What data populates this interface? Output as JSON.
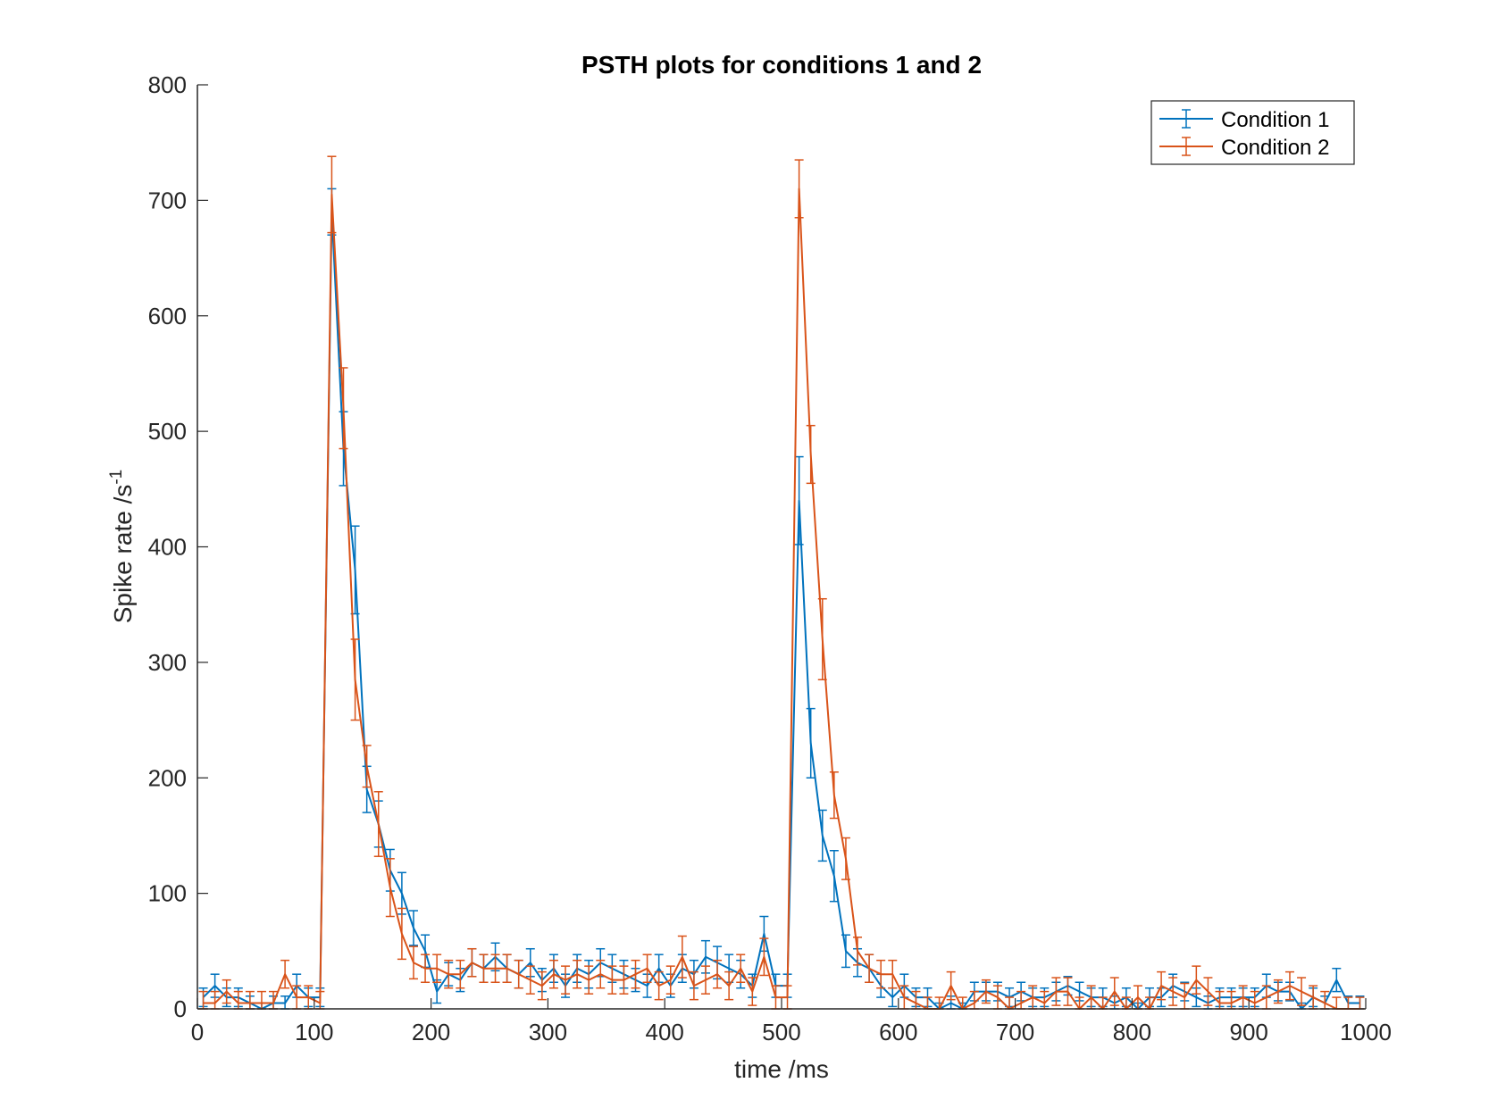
{
  "chart_data": {
    "type": "line",
    "title": "PSTH plots for conditions 1 and 2",
    "xlabel": "time /ms",
    "ylabel_base": "Spike rate /s",
    "ylabel_sup": "-1",
    "xlim": [
      0,
      1000
    ],
    "ylim": [
      0,
      800
    ],
    "xticks": [
      0,
      100,
      200,
      300,
      400,
      500,
      600,
      700,
      800,
      900,
      1000
    ],
    "yticks": [
      0,
      100,
      200,
      300,
      400,
      500,
      600,
      700,
      800
    ],
    "grid": false,
    "legend_position": "top-right",
    "error_bars": true,
    "x": [
      5,
      15,
      25,
      35,
      45,
      55,
      65,
      75,
      85,
      95,
      105,
      115,
      125,
      135,
      145,
      155,
      165,
      175,
      185,
      195,
      205,
      215,
      225,
      235,
      245,
      255,
      265,
      275,
      285,
      295,
      305,
      315,
      325,
      335,
      345,
      355,
      365,
      375,
      385,
      395,
      405,
      415,
      425,
      435,
      445,
      455,
      465,
      475,
      485,
      495,
      505,
      515,
      525,
      535,
      545,
      555,
      565,
      575,
      585,
      595,
      605,
      615,
      625,
      635,
      645,
      655,
      665,
      675,
      685,
      695,
      705,
      715,
      725,
      735,
      745,
      755,
      765,
      775,
      785,
      795,
      805,
      815,
      825,
      835,
      845,
      855,
      865,
      875,
      885,
      895,
      905,
      915,
      925,
      935,
      945,
      955,
      965,
      975,
      985,
      995
    ],
    "series": [
      {
        "name": "Condition 1",
        "color": "#0072BD",
        "values": [
          10,
          20,
          10,
          10,
          5,
          0,
          5,
          5,
          20,
          10,
          10,
          690,
          485,
          380,
          190,
          160,
          120,
          100,
          70,
          50,
          15,
          30,
          25,
          40,
          35,
          45,
          35,
          30,
          40,
          25,
          35,
          20,
          35,
          30,
          40,
          35,
          30,
          25,
          20,
          35,
          20,
          35,
          30,
          45,
          40,
          35,
          30,
          20,
          65,
          20,
          20,
          440,
          230,
          150,
          115,
          50,
          40,
          35,
          20,
          10,
          20,
          10,
          10,
          0,
          5,
          0,
          15,
          15,
          15,
          10,
          15,
          10,
          10,
          15,
          20,
          15,
          10,
          10,
          5,
          10,
          0,
          10,
          10,
          20,
          15,
          10,
          5,
          10,
          10,
          10,
          10,
          20,
          15,
          15,
          0,
          10,
          5,
          25,
          5,
          5
        ],
        "errors": [
          8,
          10,
          8,
          8,
          6,
          5,
          6,
          6,
          10,
          8,
          8,
          20,
          32,
          38,
          20,
          20,
          18,
          18,
          15,
          14,
          10,
          10,
          10,
          12,
          12,
          12,
          12,
          12,
          12,
          10,
          12,
          10,
          12,
          12,
          12,
          12,
          12,
          10,
          10,
          12,
          10,
          12,
          12,
          14,
          14,
          12,
          12,
          10,
          15,
          10,
          10,
          38,
          30,
          22,
          22,
          14,
          12,
          12,
          10,
          8,
          10,
          8,
          8,
          5,
          6,
          5,
          8,
          8,
          8,
          8,
          8,
          8,
          8,
          8,
          8,
          8,
          8,
          8,
          6,
          8,
          5,
          8,
          8,
          10,
          8,
          8,
          6,
          8,
          8,
          8,
          8,
          10,
          8,
          8,
          5,
          8,
          6,
          10,
          6,
          6
        ]
      },
      {
        "name": "Condition 2",
        "color": "#D95319",
        "values": [
          5,
          5,
          15,
          5,
          5,
          5,
          5,
          30,
          10,
          10,
          5,
          705,
          520,
          285,
          210,
          160,
          105,
          65,
          40,
          35,
          35,
          30,
          30,
          40,
          35,
          35,
          35,
          30,
          25,
          20,
          30,
          25,
          30,
          25,
          30,
          25,
          25,
          30,
          35,
          20,
          25,
          45,
          20,
          25,
          30,
          20,
          35,
          15,
          45,
          10,
          10,
          710,
          480,
          320,
          185,
          130,
          50,
          35,
          30,
          30,
          10,
          5,
          0,
          0,
          20,
          0,
          5,
          15,
          10,
          0,
          5,
          10,
          5,
          15,
          15,
          0,
          10,
          0,
          15,
          0,
          10,
          0,
          20,
          15,
          10,
          25,
          15,
          5,
          5,
          10,
          5,
          10,
          15,
          20,
          15,
          10,
          5,
          0,
          0,
          0
        ],
        "errors": [
          10,
          10,
          10,
          10,
          10,
          10,
          10,
          12,
          10,
          10,
          10,
          33,
          35,
          35,
          18,
          28,
          25,
          22,
          14,
          12,
          12,
          12,
          12,
          12,
          12,
          12,
          12,
          12,
          12,
          12,
          12,
          12,
          12,
          12,
          12,
          12,
          12,
          12,
          12,
          12,
          12,
          18,
          12,
          12,
          12,
          12,
          12,
          12,
          16,
          10,
          10,
          25,
          25,
          35,
          20,
          18,
          12,
          12,
          12,
          12,
          10,
          10,
          10,
          10,
          12,
          10,
          10,
          10,
          10,
          10,
          10,
          10,
          10,
          12,
          12,
          10,
          10,
          10,
          12,
          10,
          10,
          10,
          12,
          12,
          12,
          12,
          12,
          10,
          10,
          10,
          10,
          10,
          10,
          12,
          12,
          10,
          10,
          10,
          10,
          10
        ]
      }
    ]
  }
}
